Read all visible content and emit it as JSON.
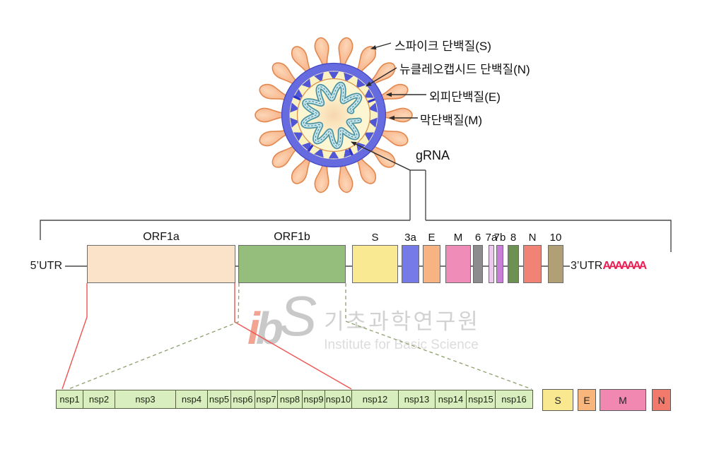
{
  "virus": {
    "labels": {
      "spike": "스파이크 단백질(S)",
      "nucleocapsid": "뉴클레오캡시드 단백질(N)",
      "envelope": "외피단백질(E)",
      "membrane": "막단백질(M)",
      "grna": "gRNA"
    }
  },
  "genome": {
    "utr5_label": "5’UTR",
    "utr3_label": "3’UTR",
    "poly_a": "AAAAAAA",
    "orfs": [
      {
        "label": "ORF1a",
        "color": "#fbe3c9"
      },
      {
        "label": "ORF1b",
        "color": "#95bd7c"
      },
      {
        "label": "S",
        "color": "#f8e992"
      },
      {
        "label": "3a",
        "color": "#7679e8"
      },
      {
        "label": "E",
        "color": "#f8b383"
      },
      {
        "label": "M",
        "color": "#f08cb8"
      },
      {
        "label": "6",
        "color": "#8d8b8d"
      },
      {
        "label": "7a",
        "color": "#eec6ef"
      },
      {
        "label": "7b",
        "color": "#c97fd9"
      },
      {
        "label": "8",
        "color": "#6c9153"
      },
      {
        "label": "N",
        "color": "#f08376"
      },
      {
        "label": "10",
        "color": "#b1a075"
      }
    ]
  },
  "nsp_row": [
    {
      "label": "nsp1"
    },
    {
      "label": "nsp2"
    },
    {
      "label": "nsp3"
    },
    {
      "label": "nsp4"
    },
    {
      "label": "nsp5"
    },
    {
      "label": "nsp6"
    },
    {
      "label": "nsp7"
    },
    {
      "label": "nsp8"
    },
    {
      "label": "nsp9"
    },
    {
      "label": "nsp10"
    },
    {
      "label": "nsp12"
    },
    {
      "label": "nsp13"
    },
    {
      "label": "nsp14"
    },
    {
      "label": "nsp15"
    },
    {
      "label": "nsp16"
    }
  ],
  "nsp_fill": "#d9eebe",
  "structural_row": [
    {
      "label": "S",
      "color": "#f9e88f"
    },
    {
      "label": "E",
      "color": "#f8b67c"
    },
    {
      "label": "M",
      "color": "#f188b2"
    },
    {
      "label": "N",
      "color": "#f27a6d"
    }
  ],
  "colors": {
    "poly_a_red": "#ed1e55",
    "expansion_red": "#ef5350",
    "expansion_green_dash": "#8ba06b",
    "line_gray": "#4a4a4a"
  },
  "watermark": {
    "logo_i": "i",
    "logo_b": "b",
    "logo_s": "S",
    "korean": "기초과학연구원",
    "english": "Institute for Basic Science"
  }
}
